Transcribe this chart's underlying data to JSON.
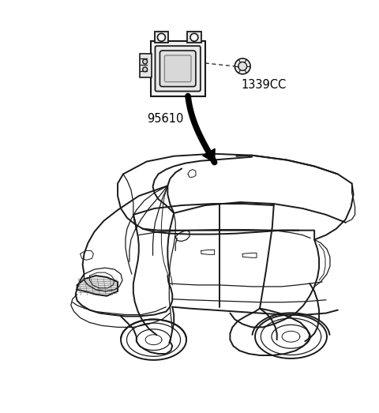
{
  "background_color": "#ffffff",
  "label_95610": "95610",
  "label_1339CC": "1339CC",
  "label_fontsize": 10.5,
  "line_color": "#1a1a1a",
  "arrow_color": "#000000",
  "text_color": "#000000",
  "fig_w": 4.8,
  "fig_h": 5.23,
  "dpi": 100
}
